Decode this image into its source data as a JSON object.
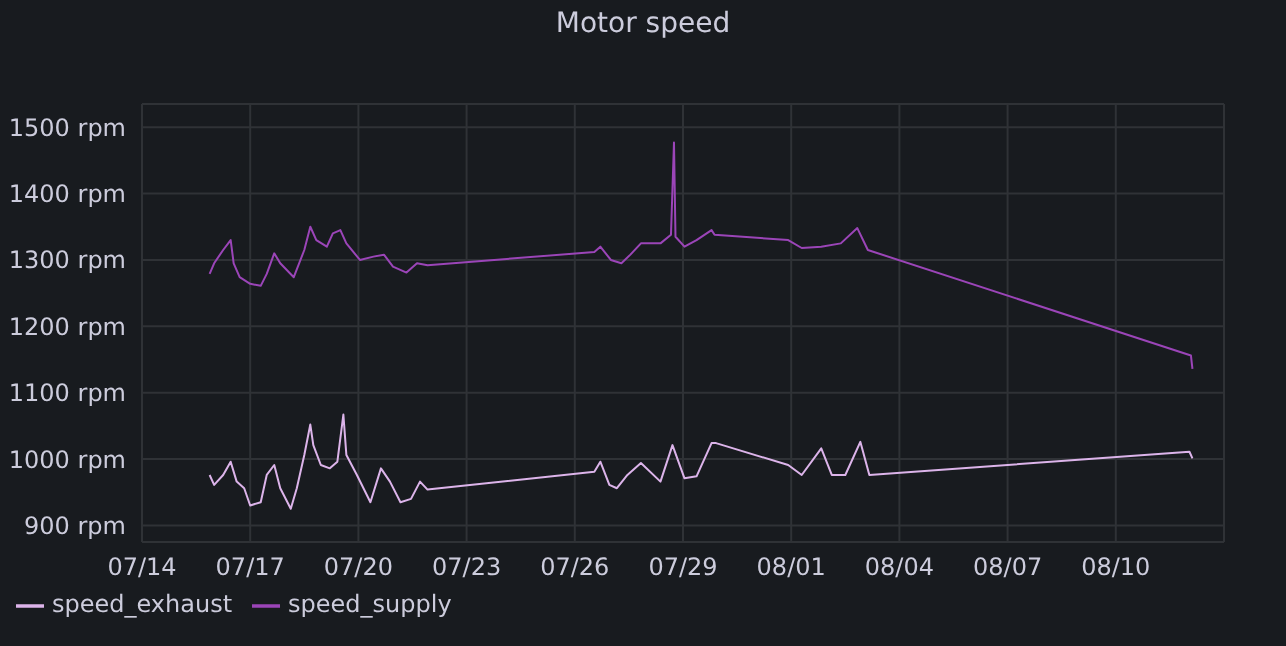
{
  "chart_data": {
    "type": "line",
    "title": "Motor speed",
    "xlim": [
      "--07-14",
      "--08-13"
    ],
    "xticks": [
      {
        "value": "--07-14",
        "label": "07/14"
      },
      {
        "value": "--07-17",
        "label": "07/17"
      },
      {
        "value": "--07-20",
        "label": "07/20"
      },
      {
        "value": "--07-23",
        "label": "07/23"
      },
      {
        "value": "--07-26",
        "label": "07/26"
      },
      {
        "value": "--07-29",
        "label": "07/29"
      },
      {
        "value": "--08-01",
        "label": "08/01"
      },
      {
        "value": "--08-04",
        "label": "08/04"
      },
      {
        "value": "--08-07",
        "label": "08/07"
      },
      {
        "value": "--08-10",
        "label": "08/10"
      }
    ],
    "ylim": [
      875,
      1535
    ],
    "yticks": [
      {
        "value": 900,
        "label": "900 rpm"
      },
      {
        "value": 1000,
        "label": "1000 rpm"
      },
      {
        "value": 1100,
        "label": "1100 rpm"
      },
      {
        "value": 1200,
        "label": "1200 rpm"
      },
      {
        "value": 1300,
        "label": "1300 rpm"
      },
      {
        "value": 1400,
        "label": "1400 rpm"
      },
      {
        "value": 1500,
        "label": "1500 rpm"
      }
    ],
    "grid": true,
    "legend": "bottom left",
    "series": [
      {
        "name": "speed_exhaust",
        "color": "#dcb4ea",
        "x": [
          "--07-15T21:00",
          "--07-16T00:00",
          "--07-16T06:00",
          "--07-16T11:00",
          "--07-16T15:00",
          "--07-16T20:00",
          "--07-17T00:00",
          "--07-17T07:00",
          "--07-17T11:00",
          "--07-17T16:00",
          "--07-17T20:00",
          "--07-18T03:00",
          "--07-18T07:00",
          "--07-18T12:00",
          "--07-18T16:00",
          "--07-18T18:00",
          "--07-18T23:00",
          "--07-19T05:00",
          "--07-19T10:00",
          "--07-19T14:00",
          "--07-19T16:00",
          "--07-19T23:00",
          "--07-20T08:00",
          "--07-20T15:00",
          "--07-20T21:00",
          "--07-21T04:00",
          "--07-21T11:00",
          "--07-21T17:00",
          "--07-21T22:00",
          "--07-26T13:00",
          "--07-26T17:00",
          "--07-26T23:00",
          "--07-27T04:00",
          "--07-27T11:00",
          "--07-27T20:00",
          "--07-28T09:00",
          "--07-28T17:00",
          "--07-29T01:00",
          "--07-29T09:00",
          "--07-29T19:00",
          "--07-29T22:00",
          "--07-31T22:00",
          "--08-01T07:00",
          "--08-01T20:00",
          "--08-02T03:00",
          "--08-02T12:00",
          "--08-02T22:00",
          "--08-03T04:00",
          "--08-12T01:00",
          "--08-12T03:00"
        ],
        "values": [
          976,
          961,
          976,
          996,
          966,
          956,
          930,
          935,
          976,
          991,
          956,
          925,
          956,
          1006,
          1052,
          1021,
          991,
          986,
          996,
          1067,
          1006,
          976,
          935,
          986,
          966,
          935,
          940,
          966,
          954,
          981,
          996,
          961,
          956,
          976,
          994,
          966,
          1021,
          971,
          974,
          1024,
          1024,
          991,
          976,
          1016,
          976,
          976,
          1026,
          976,
          1011,
          1001
        ]
      },
      {
        "name": "speed_supply",
        "color": "#9b45b8",
        "x": [
          "--07-15T21:00",
          "--07-16T00:00",
          "--07-16T06:00",
          "--07-16T11:00",
          "--07-16T13:00",
          "--07-16T17:00",
          "--07-17T00:00",
          "--07-17T07:00",
          "--07-17T11:00",
          "--07-17T16:00",
          "--07-17T20:00",
          "--07-18T05:00",
          "--07-18T12:00",
          "--07-18T16:00",
          "--07-18T20:00",
          "--07-19T03:00",
          "--07-19T07:00",
          "--07-19T12:00",
          "--07-19T16:00",
          "--07-20T01:00",
          "--07-20T10:00",
          "--07-20T17:00",
          "--07-20T23:00",
          "--07-21T08:00",
          "--07-21T15:00",
          "--07-21T22:00",
          "--07-26T13:00",
          "--07-26T17:00",
          "--07-27T00:00",
          "--07-27T07:00",
          "--07-27T13:00",
          "--07-27T20:00",
          "--07-28T09:00",
          "--07-28T16:00",
          "--07-28T18:00",
          "--07-28T19:00",
          "--07-29T01:00",
          "--07-29T09:00",
          "--07-29T19:00",
          "--07-29T21:00",
          "--07-31T22:00",
          "--08-01T07:00",
          "--08-01T20:00",
          "--08-02T09:00",
          "--08-02T20:00",
          "--08-03T03:00",
          "--08-12T02:00",
          "--08-12T03:00"
        ],
        "values": [
          1279,
          1295,
          1315,
          1330,
          1295,
          1274,
          1264,
          1261,
          1279,
          1310,
          1295,
          1274,
          1315,
          1350,
          1330,
          1320,
          1340,
          1345,
          1325,
          1300,
          1305,
          1308,
          1290,
          1281,
          1295,
          1292,
          1312,
          1320,
          1300,
          1295,
          1308,
          1325,
          1325,
          1338,
          1477,
          1335,
          1320,
          1330,
          1345,
          1338,
          1330,
          1318,
          1320,
          1325,
          1348,
          1315,
          1156,
          1136
        ]
      }
    ]
  }
}
